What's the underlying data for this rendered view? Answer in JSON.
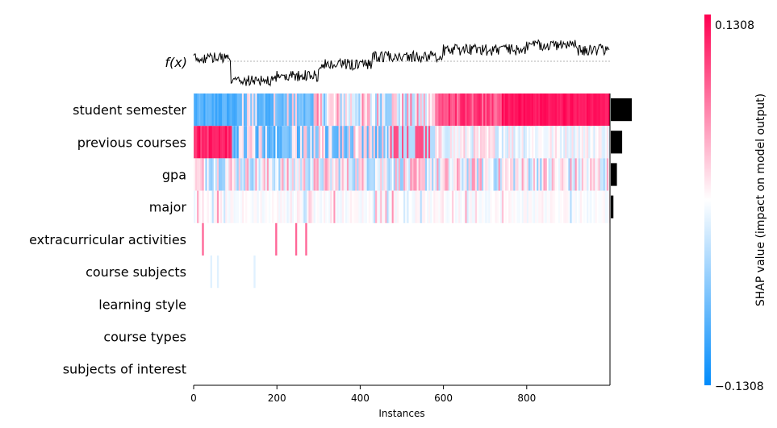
{
  "chart_data": {
    "type": "heatmap",
    "title": "",
    "xlabel": "Instances",
    "ylabel": "",
    "fx_label": "f(x)",
    "xlim": [
      0,
      1000
    ],
    "x_ticks": [
      "0",
      "200",
      "400",
      "600",
      "800"
    ],
    "x_tick_values": [
      0,
      200,
      400,
      600,
      800
    ],
    "features": [
      "student semester",
      "previous courses",
      "gpa",
      "major",
      "extracurricular activities",
      "course subjects",
      "learning style",
      "course types",
      "subjects of interest"
    ],
    "feature_importance": [
      0.048,
      0.026,
      0.014,
      0.006,
      0.0,
      0.0,
      0.0,
      0.0,
      0.0
    ],
    "colorbar": {
      "label": "SHAP value (impact on model output)",
      "max_label": "0.1308",
      "min_label": "−0.1308",
      "vmax": 0.1308,
      "vmin": -0.1308,
      "colors": [
        "#008bfb",
        "#ffffff",
        "#ff0051"
      ]
    }
  }
}
